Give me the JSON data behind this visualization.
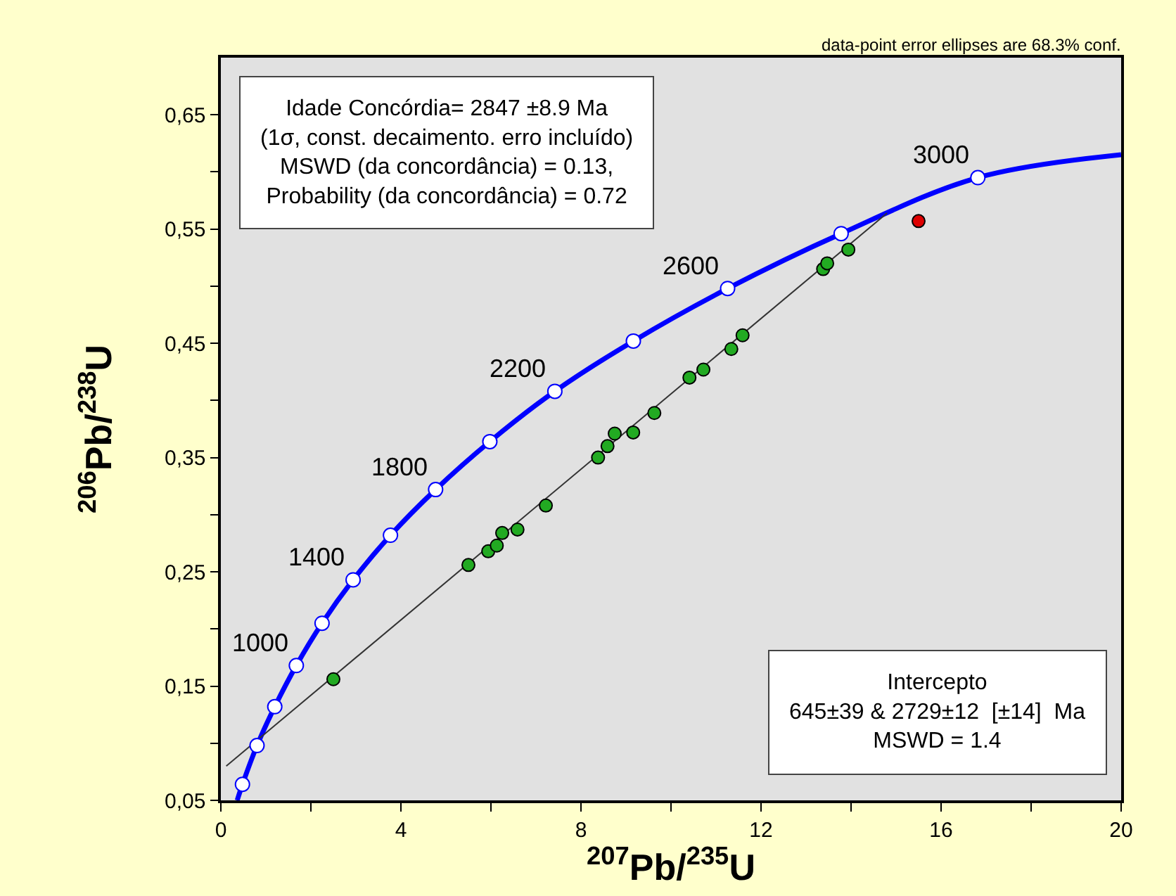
{
  "chart_data": {
    "type": "scatter",
    "xlabel": "$^{207}$Pb/$^{235}$U",
    "ylabel": "$^{206}$Pb/$^{238}$U",
    "xlim": [
      0,
      20
    ],
    "ylim": [
      0.05,
      0.7
    ],
    "xticks": [
      0,
      {
        "value": 2,
        "label": null
      },
      4,
      {
        "value": 6,
        "label": null
      },
      8,
      {
        "value": 10,
        "label": null
      },
      12,
      {
        "value": 14,
        "label": null
      },
      16,
      {
        "value": 18,
        "label": null
      },
      20
    ],
    "yticks": [
      {
        "value": 0.05,
        "label": "0,05"
      },
      {
        "value": 0.1,
        "label": null
      },
      {
        "value": 0.15,
        "label": "0,15"
      },
      {
        "value": 0.2,
        "label": null
      },
      {
        "value": 0.25,
        "label": "0,25"
      },
      {
        "value": 0.3,
        "label": null
      },
      {
        "value": 0.35,
        "label": "0,35"
      },
      {
        "value": 0.4,
        "label": null
      },
      {
        "value": 0.45,
        "label": "0,45"
      },
      {
        "value": 0.5,
        "label": null
      },
      {
        "value": 0.55,
        "label": "0,55"
      },
      {
        "value": 0.6,
        "label": null
      },
      {
        "value": 0.65,
        "label": "0,65"
      }
    ],
    "grid": false,
    "series": [
      {
        "type": "line",
        "color": "#0000ff",
        "marker": "none",
        "x": [
          0.363,
          0.48,
          0.804,
          1.198,
          1.677,
          2.248,
          2.938,
          3.768,
          4.771,
          5.976,
          7.42,
          9.164,
          11.258,
          13.78,
          16.817,
          20
        ],
        "values": [
          0.05,
          0.064,
          0.098,
          0.132,
          0.168,
          0.205,
          0.243,
          0.282,
          0.322,
          0.364,
          0.408,
          0.452,
          0.498,
          0.546,
          0.595,
          0.615
        ]
      },
      {
        "type": "line",
        "color": "#333333",
        "marker": "none",
        "x": [
          0.12,
          14.8
        ],
        "values": [
          0.08,
          0.564
        ]
      },
      {
        "color": "#ffffff",
        "marker": "circle",
        "x": [
          0.48,
          0.804,
          1.198,
          1.677,
          2.248,
          2.938,
          3.768,
          4.771,
          5.976,
          7.42,
          9.164,
          11.258,
          13.78,
          16.817
        ],
        "values": [
          0.064,
          0.098,
          0.132,
          0.168,
          0.205,
          0.243,
          0.282,
          0.322,
          0.364,
          0.408,
          0.452,
          0.498,
          0.546,
          0.595
        ]
      },
      {
        "color": "#22aa22",
        "marker": "circle",
        "x": [
          2.5,
          5.5,
          5.94,
          6.13,
          6.25,
          6.59,
          7.22,
          8.38,
          8.59,
          8.75,
          9.16,
          9.63,
          10.41,
          10.72,
          11.34,
          11.59,
          13.38,
          13.47,
          13.94
        ],
        "values": [
          0.156,
          0.256,
          0.268,
          0.273,
          0.284,
          0.287,
          0.308,
          0.35,
          0.36,
          0.371,
          0.372,
          0.389,
          0.42,
          0.427,
          0.445,
          0.457,
          0.515,
          0.52,
          0.532
        ]
      },
      {
        "color": "#dd0000",
        "marker": "circle",
        "x": [
          15.5
        ],
        "values": [
          0.557
        ]
      }
    ],
    "annotations": [
      "data-point error ellipses are 68.3% conf.",
      "Idade Concórdia= 2847 ±8.9 Ma\n(1σ, const. decaimento. erro incluído)\nMSWD (da concordância) = 0.13,\nProbability (da concordância) = 0.72",
      "Intercepto\n645±39 & 2729±12  [±14]  Ma\nMSWD = 1.4",
      {
        "text": "1000",
        "x": 1.677,
        "y": 0.168
      },
      {
        "text": "1400",
        "x": 2.938,
        "y": 0.243
      },
      {
        "text": "1800",
        "x": 4.771,
        "y": 0.322
      },
      {
        "text": "2200",
        "x": 7.42,
        "y": 0.408
      },
      {
        "text": "2600",
        "x": 11.258,
        "y": 0.498
      },
      {
        "text": "3000",
        "x": 16.817,
        "y": 0.595
      }
    ]
  }
}
